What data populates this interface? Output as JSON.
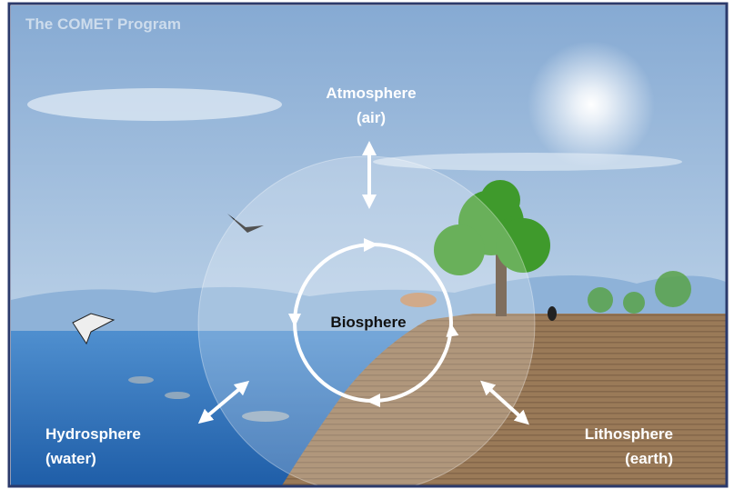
{
  "credit": "The COMET Program",
  "center": {
    "label": "Biosphere"
  },
  "spheres": [
    {
      "name": "Atmosphere",
      "note": "(air)"
    },
    {
      "name": "Hydrosphere",
      "note": "(water)"
    },
    {
      "name": "Lithosphere",
      "note": "(earth)"
    }
  ]
}
